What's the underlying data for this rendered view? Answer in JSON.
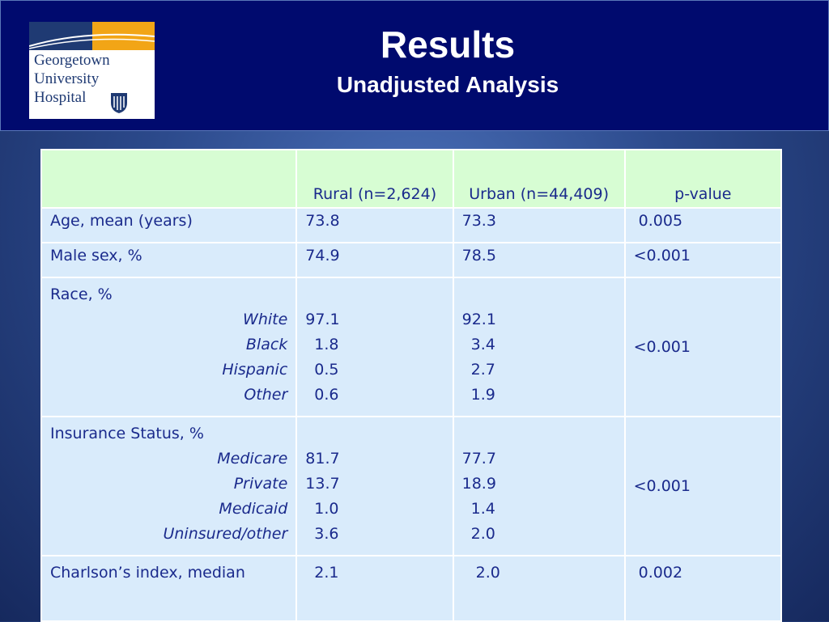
{
  "header": {
    "title": "Results",
    "subtitle": "Unadjusted Analysis",
    "logo": {
      "lines": [
        "Georgetown",
        "University",
        "Hospital"
      ]
    }
  },
  "table": {
    "columns": [
      "",
      "Rural  (n=2,624)",
      "Urban (n=44,409)",
      "p-value"
    ],
    "rows": [
      {
        "label": "Age, mean (years)",
        "rural": "73.8",
        "urban": "73.3",
        "p": " 0.005"
      },
      {
        "label": "Male sex, %",
        "rural": "74.9",
        "urban": "78.5",
        "p": "<0.001"
      },
      {
        "label": "Race, %",
        "subrows": [
          {
            "label": "White",
            "rural": "97.1",
            "urban": "92.1"
          },
          {
            "label": "Black",
            "rural": "1.8",
            "urban": "3.4"
          },
          {
            "label": "Hispanic",
            "rural": "0.5",
            "urban": "2.7"
          },
          {
            "label": "Other",
            "rural": "0.6",
            "urban": "1.9"
          }
        ],
        "p": "<0.001"
      },
      {
        "label": "Insurance Status, %",
        "subrows": [
          {
            "label": "Medicare",
            "rural": "81.7",
            "urban": "77.7"
          },
          {
            "label": "Private",
            "rural": "13.7",
            "urban": "18.9"
          },
          {
            "label": "Medicaid",
            "rural": "1.0",
            "urban": "1.4"
          },
          {
            "label": "Uninsured/other",
            "rural": "3.6",
            "urban": "2.0"
          }
        ],
        "p": "<0.001"
      },
      {
        "label": "Charlson’s index, median",
        "rural": "2.1",
        "urban": "2.0",
        "p": "0.002"
      }
    ]
  },
  "colors": {
    "header_bg": "#000a6e",
    "table_header_bg": "#d7fdd3",
    "table_body_bg": "#d9ebfb",
    "text": "#1a2a8c"
  }
}
